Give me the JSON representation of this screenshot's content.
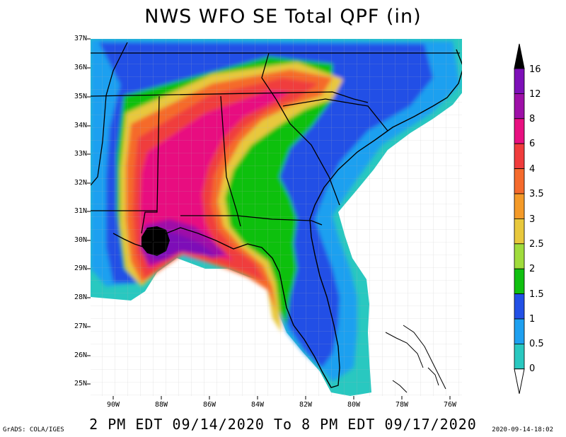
{
  "title": "NWS WFO SE Total QPF (in)",
  "period": "2 PM EDT 09/14/2020 To 8 PM EDT 09/17/2020",
  "credit": "GrADS: COLA/IGES",
  "timestamp": "2020-09-14-18:02",
  "map": {
    "lat_labels": [
      "37N",
      "36N",
      "35N",
      "34N",
      "33N",
      "32N",
      "31N",
      "30N",
      "29N",
      "28N",
      "27N",
      "26N",
      "25N"
    ],
    "lon_labels": [
      "90W",
      "88W",
      "86W",
      "84W",
      "82W",
      "80W",
      "78W",
      "76W"
    ],
    "background_color": "#29c8c0"
  },
  "colorbar": {
    "labels": [
      "16",
      "12",
      "8",
      "6",
      "4",
      "3.5",
      "3",
      "2.5",
      "2",
      "1.5",
      "1",
      "0.5",
      "0"
    ],
    "colors": [
      "#7d10b8",
      "#9e10a8",
      "#e81080",
      "#f03c3c",
      "#f56a2c",
      "#f49a28",
      "#e8c83c",
      "#a0dc3c",
      "#10c010",
      "#2250e6",
      "#1ea0f0",
      "#29c8c0"
    ],
    "max_arrow_color": "#000000",
    "min_arrow_color": "#ffffff"
  }
}
